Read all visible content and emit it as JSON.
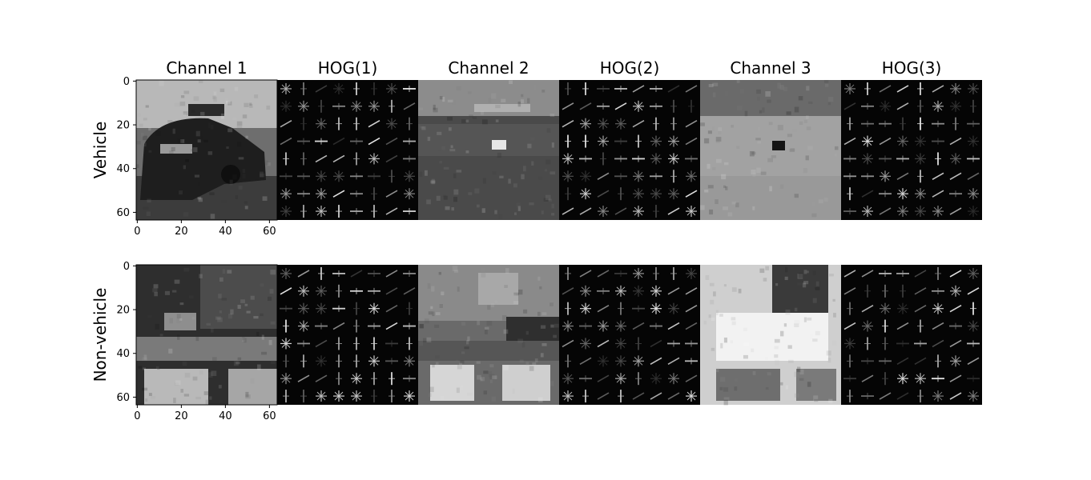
{
  "chart_data": {
    "type": "image-grid",
    "columns": [
      "Channel 1",
      "HOG(1)",
      "Channel 2",
      "HOG(2)",
      "Channel 3",
      "HOG(3)"
    ],
    "rows": [
      "Vehicle",
      "Non-vehicle"
    ],
    "image_size": [
      64,
      64
    ],
    "axis_ticks": {
      "x": [
        "0",
        "20",
        "40",
        "60"
      ],
      "y": [
        "0",
        "20",
        "40",
        "60"
      ],
      "shown_on": "first column only"
    },
    "colormap": "gray",
    "panels": [
      {
        "row": "Vehicle",
        "column": "Channel 1",
        "content": "grayscale photo of car rear"
      },
      {
        "row": "Vehicle",
        "column": "HOG(1)",
        "content": "HOG gradient cells"
      },
      {
        "row": "Vehicle",
        "column": "Channel 2",
        "content": "grayscale channel"
      },
      {
        "row": "Vehicle",
        "column": "HOG(2)",
        "content": "HOG gradient cells"
      },
      {
        "row": "Vehicle",
        "column": "Channel 3",
        "content": "grayscale channel"
      },
      {
        "row": "Vehicle",
        "column": "HOG(3)",
        "content": "HOG gradient cells"
      },
      {
        "row": "Non-vehicle",
        "column": "Channel 1",
        "content": "grayscale photo of road edge"
      },
      {
        "row": "Non-vehicle",
        "column": "HOG(1)",
        "content": "HOG gradient cells"
      },
      {
        "row": "Non-vehicle",
        "column": "Channel 2",
        "content": "grayscale channel"
      },
      {
        "row": "Non-vehicle",
        "column": "HOG(2)",
        "content": "HOG gradient cells"
      },
      {
        "row": "Non-vehicle",
        "column": "Channel 3",
        "content": "grayscale channel"
      },
      {
        "row": "Non-vehicle",
        "column": "HOG(3)",
        "content": "HOG gradient cells"
      }
    ]
  }
}
